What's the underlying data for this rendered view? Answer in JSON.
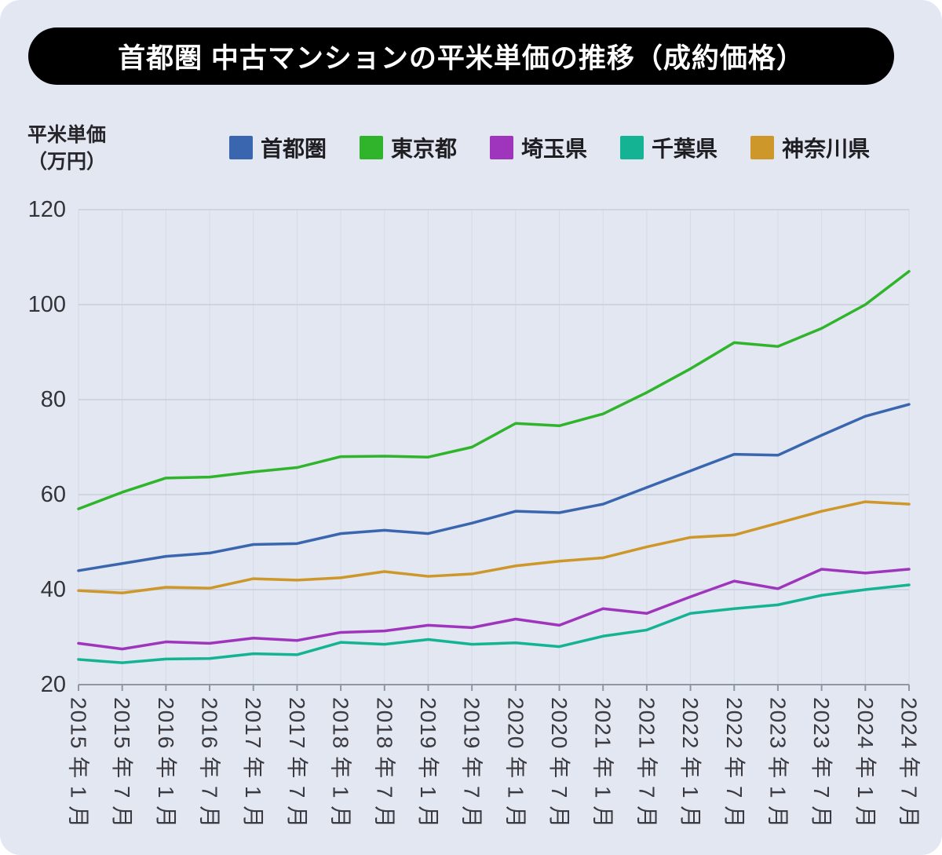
{
  "title": "首都圏 中古マンションの平米単価の推移（成約価格）",
  "y_axis_caption": {
    "line1": "平米単価",
    "line2": "（万円）"
  },
  "colors": {
    "background": "#e3e7f1",
    "title_bg": "#000000",
    "title_fg": "#ffffff",
    "grid_h": "#c8cedc",
    "grid_v": "#d5dae6",
    "axis": "#8e96a4",
    "tick_text": "#33333a"
  },
  "chart_data": {
    "type": "line",
    "title": "首都圏 中古マンションの平米単価の推移（成約価格）",
    "xlabel": "",
    "ylabel": "平米単価（万円）",
    "ylim": [
      20,
      120
    ],
    "yticks": [
      20,
      40,
      60,
      80,
      100,
      120
    ],
    "grid": true,
    "legend_position": "top",
    "categories": [
      "2015 年 1 月",
      "2015 年 7 月",
      "2016 年 1 月",
      "2016 年 7 月",
      "2017 年 1 月",
      "2017 年 7 月",
      "2018 年 1 月",
      "2018 年 7 月",
      "2019 年 1 月",
      "2019 年 7 月",
      "2020 年 1 月",
      "2020 年 7 月",
      "2021 年 1 月",
      "2021 年 7 月",
      "2022 年 1 月",
      "2022 年 7 月",
      "2023 年 1 月",
      "2023 年 7 月",
      "2024 年 1 月",
      "2024 年 7 月"
    ],
    "series": [
      {
        "name": "首都圏",
        "color": "#3a66b0",
        "values": [
          44,
          45.5,
          47,
          47.7,
          49.5,
          49.7,
          51.8,
          52.5,
          51.8,
          54,
          56.5,
          56.2,
          58,
          61.5,
          65,
          68.5,
          68.3,
          72.5,
          76.5,
          79
        ]
      },
      {
        "name": "東京都",
        "color": "#2fb42c",
        "values": [
          57,
          60.5,
          63.5,
          63.7,
          64.8,
          65.7,
          68,
          68.1,
          67.9,
          70,
          75,
          74.5,
          77,
          81.5,
          86.5,
          92,
          91.2,
          95,
          100,
          107
        ]
      },
      {
        "name": "埼玉県",
        "color": "#9e35bc",
        "values": [
          28.7,
          27.5,
          29,
          28.7,
          29.8,
          29.3,
          31,
          31.3,
          32.5,
          32,
          33.8,
          32.5,
          36,
          35,
          38.5,
          41.8,
          40.2,
          44.3,
          43.5,
          44.3
        ]
      },
      {
        "name": "千葉県",
        "color": "#14b394",
        "values": [
          25.3,
          24.6,
          25.4,
          25.5,
          26.5,
          26.3,
          28.9,
          28.5,
          29.5,
          28.5,
          28.8,
          28,
          30.2,
          31.5,
          35,
          36,
          36.8,
          38.8,
          40,
          41
        ]
      },
      {
        "name": "神奈川県",
        "color": "#cd9729",
        "values": [
          39.8,
          39.3,
          40.5,
          40.3,
          42.3,
          42,
          42.5,
          43.8,
          42.8,
          43.3,
          45,
          46,
          46.7,
          49,
          51,
          51.5,
          54,
          56.5,
          58.5,
          58
        ]
      }
    ]
  }
}
